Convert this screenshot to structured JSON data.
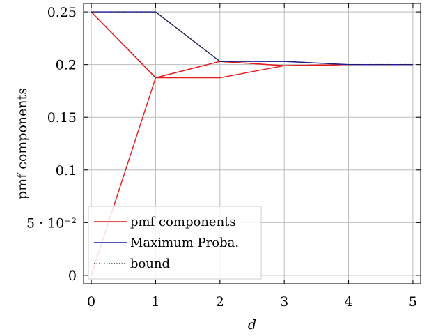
{
  "chart_data": {
    "type": "line",
    "title": "",
    "xlabel": "d",
    "ylabel": "pmf components",
    "x": [
      0,
      1,
      2,
      3,
      4,
      5
    ],
    "xlim": [
      -0.12,
      5.12
    ],
    "ylim": [
      -0.008,
      0.258
    ],
    "xticks": [
      0,
      1,
      2,
      3,
      4,
      5
    ],
    "xtick_labels": [
      "0",
      "1",
      "2",
      "3",
      "4",
      "5"
    ],
    "yticks": [
      0,
      0.05,
      0.1,
      0.15,
      0.2,
      0.25
    ],
    "ytick_labels": [
      "0",
      "5 · 10⁻²",
      "0.1",
      "0.15",
      "0.2",
      "0.25"
    ],
    "grid": true,
    "legend_position": "bottom-left",
    "series": [
      {
        "name": "pmf components",
        "color": "#e41a1c",
        "style": "solid",
        "legend": true,
        "values": [
          0.25,
          0.1875,
          0.1875,
          0.199,
          0.2,
          0.2
        ]
      },
      {
        "name": "",
        "color": "#e41a1c",
        "style": "solid",
        "legend": false,
        "values": [
          0.25,
          0.1875,
          0.203,
          0.199,
          0.2,
          0.2
        ]
      },
      {
        "name": "",
        "color": "#e41a1c",
        "style": "solid",
        "legend": false,
        "values": [
          0,
          0.1875,
          0.203,
          0.199,
          0.2,
          0.2
        ]
      },
      {
        "name": "Maximum Proba.",
        "color": "#1c1ca8",
        "style": "solid",
        "legend": true,
        "values": [
          0.25,
          0.25,
          0.203,
          0.203,
          0.2,
          0.2
        ]
      },
      {
        "name": "bound",
        "color": "#222222",
        "style": "dotted",
        "legend": true,
        "values": [
          0.25,
          0.25,
          0.2031,
          0.2031,
          0.2001,
          0.2001
        ]
      }
    ]
  }
}
